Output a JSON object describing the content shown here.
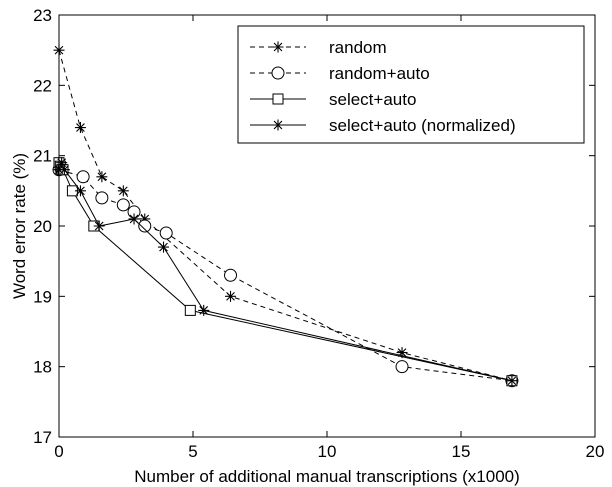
{
  "chart_data": {
    "type": "line",
    "title": "",
    "xlabel": "Number of additional manual transcriptions (x1000)",
    "ylabel": "Word error rate (%)",
    "xlim": [
      0,
      20
    ],
    "ylim": [
      17,
      23
    ],
    "xticks": [
      0,
      5,
      10,
      15,
      20
    ],
    "yticks": [
      17,
      18,
      19,
      20,
      21,
      22,
      23
    ],
    "grid": false,
    "legend_position": "top-right",
    "series": [
      {
        "name": "random",
        "line_style": "dashed",
        "marker": "asterisk",
        "x": [
          0.0,
          0.8,
          1.6,
          2.4,
          3.2,
          6.4,
          12.8,
          16.9
        ],
        "y": [
          22.5,
          21.4,
          20.7,
          20.5,
          20.1,
          19.0,
          18.2,
          17.8
        ]
      },
      {
        "name": "random+auto",
        "line_style": "dashed",
        "marker": "circle",
        "x": [
          0.0,
          0.9,
          1.6,
          2.4,
          2.8,
          3.2,
          4.0,
          6.4,
          12.8,
          16.9
        ],
        "y": [
          20.8,
          20.7,
          20.4,
          20.3,
          20.2,
          20.0,
          19.9,
          19.3,
          18.0,
          17.8
        ]
      },
      {
        "name": "select+auto",
        "line_style": "solid",
        "marker": "square",
        "x": [
          0.0,
          0.05,
          0.1,
          0.15,
          0.5,
          1.3,
          4.9,
          16.9
        ],
        "y": [
          20.9,
          20.85,
          20.8,
          20.8,
          20.5,
          20.0,
          18.8,
          17.8
        ]
      },
      {
        "name": "select+auto (normalized)",
        "line_style": "solid",
        "marker": "asterisk",
        "x": [
          0.0,
          0.1,
          0.2,
          0.8,
          1.5,
          2.8,
          3.9,
          5.4,
          16.9
        ],
        "y": [
          20.8,
          20.9,
          20.8,
          20.5,
          20.0,
          20.1,
          19.7,
          18.8,
          17.8
        ]
      }
    ]
  }
}
